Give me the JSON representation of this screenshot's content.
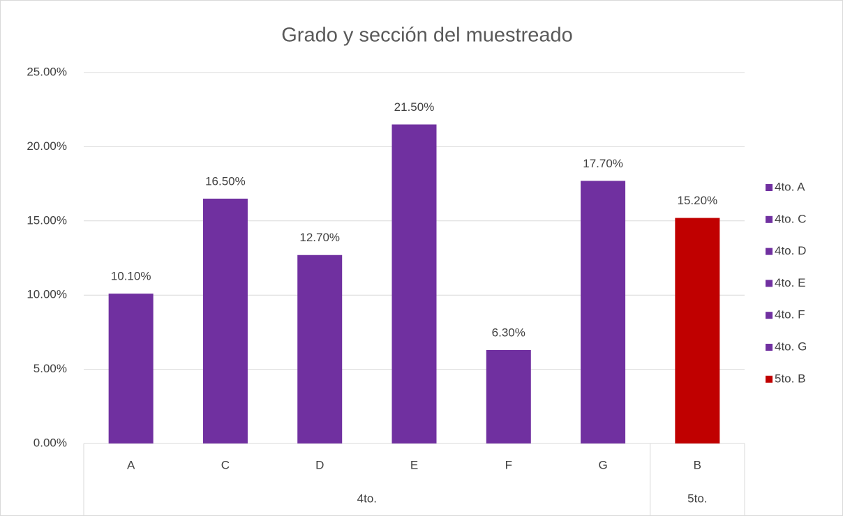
{
  "chart_data": {
    "type": "bar",
    "title": "Grado y sección del muestreado",
    "groups": [
      {
        "label": "4to.",
        "categories": [
          "A",
          "C",
          "D",
          "E",
          "F",
          "G"
        ]
      },
      {
        "label": "5to.",
        "categories": [
          "B"
        ]
      }
    ],
    "values": [
      10.1,
      16.5,
      12.7,
      21.5,
      6.3,
      17.7,
      15.2
    ],
    "value_labels": [
      "10.10%",
      "16.50%",
      "12.70%",
      "21.50%",
      "6.30%",
      "17.70%",
      "15.20%"
    ],
    "colors": [
      "#7030a0",
      "#7030a0",
      "#7030a0",
      "#7030a0",
      "#7030a0",
      "#7030a0",
      "#c00000"
    ],
    "legend": [
      "4to. A",
      "4to. C",
      "4to. D",
      "4to. E",
      "4to. F",
      "4to. G",
      "5to. B"
    ],
    "legend_position": "right",
    "ylim": [
      0,
      25
    ],
    "yticks": [
      {
        "value": 0,
        "label": "0.00%"
      },
      {
        "value": 5,
        "label": "5.00%"
      },
      {
        "value": 10,
        "label": "10.00%"
      },
      {
        "value": 15,
        "label": "15.00%"
      },
      {
        "value": 20,
        "label": "20.00%"
      },
      {
        "value": 25,
        "label": "25.00%"
      }
    ],
    "grid": true
  }
}
